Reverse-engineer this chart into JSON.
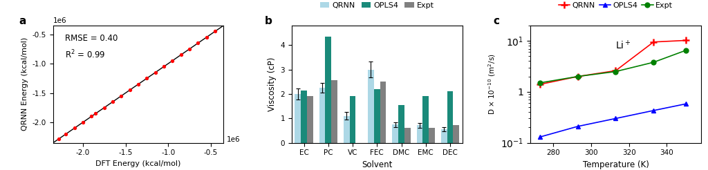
{
  "panel_a": {
    "xlabel": "DFT Energy (kcal/mol)",
    "ylabel": "QRNN Energy (kcal/mol)",
    "rmse_text": "RMSE = 0.40",
    "r2_text": "R$^2$ = 0.99",
    "x_vals": [
      -2.28,
      -2.2,
      -2.1,
      -2.0,
      -1.9,
      -1.85,
      -1.75,
      -1.65,
      -1.55,
      -1.45,
      -1.35,
      -1.25,
      -1.15,
      -1.05,
      -0.95,
      -0.85,
      -0.75,
      -0.65,
      -0.55,
      -0.45
    ],
    "y_offsets": [
      0.005,
      -0.008,
      0.003,
      -0.004,
      0.006,
      -0.003,
      0.004,
      -0.003,
      0.002,
      -0.005,
      0.003,
      -0.002,
      0.005,
      -0.001,
      0.003,
      -0.005,
      0.001,
      -0.004,
      0.002,
      -0.001
    ],
    "xlim": [
      -2.35,
      -0.35
    ],
    "ylim": [
      -2.35,
      -0.35
    ],
    "xticks": [
      -2.0,
      -1.5,
      -1.0,
      -0.5
    ],
    "yticks": [
      -2.0,
      -1.5,
      -1.0,
      -0.5
    ],
    "scatter_color": "red",
    "line_color": "black"
  },
  "panel_b": {
    "xlabel": "Solvent",
    "ylabel": "Viscosity (cP)",
    "solvents": [
      "EC",
      "PC",
      "VC",
      "FEC",
      "DMC",
      "EMC",
      "DEC"
    ],
    "qrnn": [
      2.0,
      2.25,
      1.1,
      3.0,
      0.75,
      0.72,
      0.55
    ],
    "opls4": [
      2.15,
      4.35,
      1.9,
      2.2,
      1.55,
      1.9,
      2.1
    ],
    "expt": [
      1.9,
      2.55,
      null,
      2.5,
      0.62,
      0.6,
      0.72
    ],
    "qrnn_err": [
      0.22,
      0.2,
      0.15,
      0.32,
      0.1,
      0.1,
      0.09
    ],
    "color_qrnn": "#add8e6",
    "color_opls4": "#1a8a7a",
    "color_expt": "#808080",
    "ylim": [
      0,
      4.8
    ],
    "yticks": [
      0,
      1,
      2,
      3,
      4
    ],
    "bar_width": 0.25
  },
  "panel_c": {
    "xlabel": "Temperature (K)",
    "ylabel_latex": "D $\\times$ 10$^{-10}$ (m$^2$/s)",
    "annotation": "Li$^+$",
    "temps": [
      273,
      293,
      313,
      333,
      350
    ],
    "qrnn": [
      1.4,
      2.0,
      2.6,
      9.5,
      10.2
    ],
    "opls4": [
      0.13,
      0.21,
      0.3,
      0.43,
      0.58
    ],
    "expt": [
      1.5,
      2.0,
      2.5,
      3.8,
      6.5
    ],
    "color_qrnn": "red",
    "color_opls4": "blue",
    "color_expt": "green",
    "xlim": [
      268,
      358
    ],
    "xticks": [
      280,
      300,
      320,
      340
    ],
    "ylim_log": [
      0.1,
      20
    ]
  }
}
